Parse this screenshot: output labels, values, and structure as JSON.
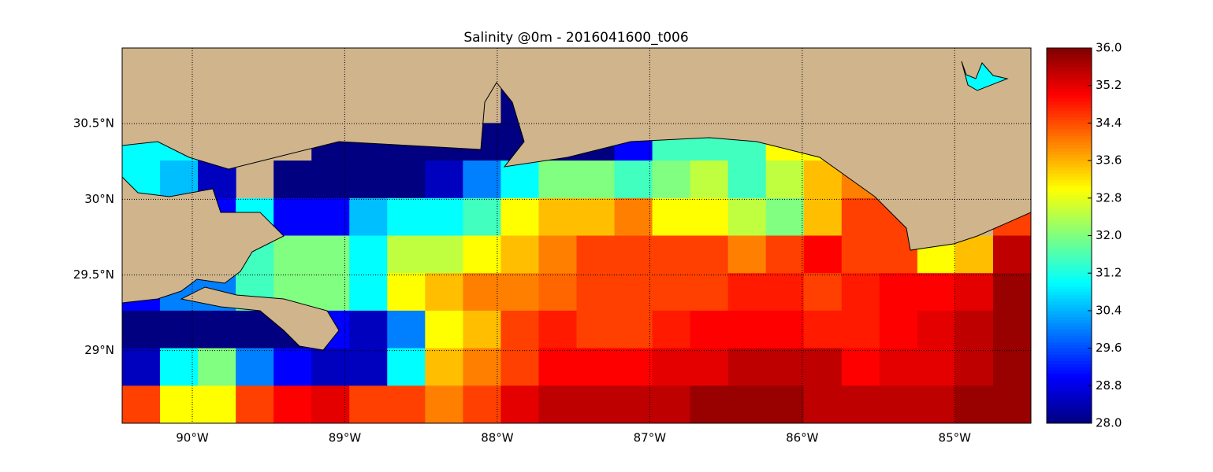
{
  "chart_data": {
    "type": "raster",
    "title": "Salinity @0m - 2016041600_t006",
    "xlim": [
      -90.46,
      -84.5
    ],
    "ylim": [
      28.52,
      31.0
    ],
    "xticks": [
      {
        "value": -90,
        "label": "90°W"
      },
      {
        "value": -89,
        "label": "89°W"
      },
      {
        "value": -88,
        "label": "88°W"
      },
      {
        "value": -87,
        "label": "87°W"
      },
      {
        "value": -86,
        "label": "86°W"
      },
      {
        "value": -85,
        "label": "85°W"
      }
    ],
    "yticks": [
      {
        "value": 29,
        "label": "29°N"
      },
      {
        "value": 29.5,
        "label": "29.5°N"
      },
      {
        "value": 30,
        "label": "30°N"
      },
      {
        "value": 30.5,
        "label": "30.5°N"
      }
    ],
    "grid": true,
    "land_color": "#cfb48c",
    "colormap": "jet",
    "clim": [
      28.0,
      36.0
    ],
    "cticks": [
      {
        "value": 28.0,
        "label": "28.0"
      },
      28.8,
      29.6,
      30.4,
      31.2,
      {
        "value": 32.0,
        "label": "32.0"
      },
      32.8,
      33.6,
      34.4,
      35.2,
      {
        "value": 36.0,
        "label": "36.0"
      }
    ],
    "values": [
      [
        null,
        null,
        null,
        null,
        null,
        null,
        null,
        null,
        null,
        null,
        null,
        null,
        null,
        null,
        null,
        null,
        null,
        null,
        null,
        null,
        null,
        null,
        null,
        null
      ],
      [
        null,
        null,
        null,
        null,
        null,
        null,
        null,
        null,
        null,
        null,
        28,
        null,
        null,
        null,
        null,
        null,
        null,
        null,
        null,
        null,
        null,
        null,
        null,
        null
      ],
      [
        31,
        31,
        null,
        null,
        null,
        28,
        28,
        28,
        28,
        28,
        28,
        28,
        28,
        29,
        31.5,
        31.5,
        31.5,
        33,
        33,
        null,
        null,
        null,
        null,
        null
      ],
      [
        31,
        30.5,
        28.5,
        null,
        28,
        28,
        28,
        28,
        28.5,
        30,
        31,
        32,
        32,
        31.5,
        32,
        32.5,
        31.5,
        32.5,
        33.5,
        34,
        34.2,
        34.5,
        null,
        null
      ],
      [
        null,
        null,
        29,
        31,
        29,
        29,
        30.5,
        31,
        31,
        31.5,
        33,
        33.5,
        33.5,
        34,
        33,
        33,
        32.5,
        32,
        33.5,
        34.5,
        34.5,
        33,
        null,
        34.5
      ],
      [
        null,
        null,
        31.5,
        31.5,
        32,
        32,
        31,
        32.5,
        32.5,
        33,
        33.5,
        34,
        34.5,
        34.5,
        34.5,
        34.5,
        34,
        34.5,
        35,
        34.5,
        34.5,
        33,
        33.5,
        35.5
      ],
      [
        29,
        30,
        30,
        31.5,
        32,
        32,
        31,
        33,
        33.5,
        34,
        34,
        34.2,
        34.5,
        34.5,
        34.5,
        34.5,
        34.8,
        34.8,
        34.5,
        34.8,
        35,
        35,
        35.2,
        35.8
      ],
      [
        28,
        28,
        28,
        28,
        28,
        29,
        28.5,
        30,
        33,
        33.5,
        34.5,
        34.8,
        34.5,
        34.5,
        34.8,
        35,
        35,
        35,
        34.8,
        34.8,
        35,
        35.2,
        35.5,
        35.8
      ],
      [
        28.5,
        31,
        32,
        30,
        29,
        28.5,
        28.5,
        31,
        33.5,
        34,
        34.5,
        35,
        35,
        35,
        35.2,
        35.2,
        35.5,
        35.5,
        35.5,
        35,
        35.2,
        35.2,
        35.5,
        35.8
      ],
      [
        34.5,
        33,
        33,
        34.5,
        35,
        35.2,
        34.5,
        34.5,
        34,
        34.5,
        35.2,
        35.5,
        35.5,
        35.5,
        35.5,
        35.8,
        35.8,
        35.8,
        35.5,
        35.5,
        35.5,
        35.5,
        35.8,
        35.8
      ]
    ]
  }
}
